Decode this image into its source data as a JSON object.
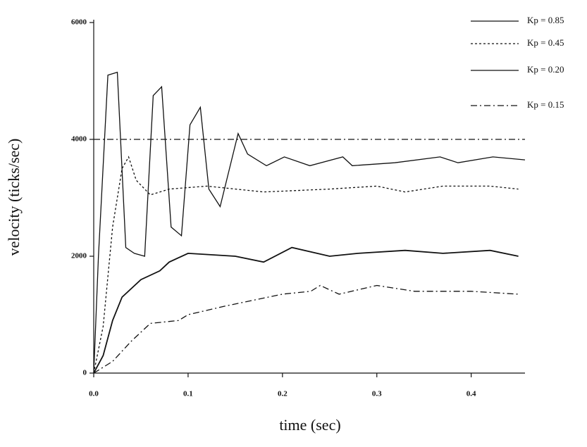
{
  "chart_data": {
    "type": "line",
    "x_label": "time (sec)",
    "y_label": "velocity (ticks/sec)",
    "xlim": [
      0,
      0.457
    ],
    "ylim": [
      0,
      6000
    ],
    "xticks": [
      {
        "value": 0,
        "label": "0.0"
      },
      0.1,
      0.2,
      0.3,
      0.4
    ],
    "yticks": [
      0,
      2000,
      4000,
      6000
    ],
    "reference_value": 4000,
    "reference_linestyle": "dashdot",
    "legend": "upper right",
    "series": [
      {
        "name": "Kp = 0.85",
        "color": "#111111",
        "linestyle": "solid",
        "x": [
          0,
          0.005,
          0.015,
          0.025,
          0.034,
          0.043,
          0.054,
          0.063,
          0.072,
          0.082,
          0.093,
          0.102,
          0.113,
          0.122,
          0.134,
          0.153,
          0.163,
          0.183,
          0.202,
          0.229,
          0.264,
          0.274,
          0.319,
          0.367,
          0.386,
          0.423,
          0.457
        ],
        "values": [
          0,
          2000,
          5100,
          5150,
          2150,
          2050,
          2000,
          4750,
          4900,
          2500,
          2350,
          4250,
          4550,
          3150,
          2850,
          4100,
          3750,
          3550,
          3700,
          3550,
          3700,
          3550,
          3600,
          3700,
          3600,
          3700,
          3650
        ]
      },
      {
        "name": "Kp = 0.45",
        "color": "#111111",
        "linestyle": "dotted",
        "x": [
          0,
          0.01,
          0.02,
          0.03,
          0.037,
          0.045,
          0.06,
          0.08,
          0.12,
          0.18,
          0.25,
          0.3,
          0.33,
          0.37,
          0.42,
          0.45
        ],
        "values": [
          0,
          800,
          2500,
          3500,
          3700,
          3300,
          3050,
          3150,
          3200,
          3100,
          3150,
          3200,
          3100,
          3200,
          3200,
          3150
        ]
      },
      {
        "name": "Kp = 0.20",
        "color": "#111111",
        "linestyle": "solid",
        "x": [
          0,
          0.01,
          0.02,
          0.03,
          0.05,
          0.07,
          0.08,
          0.1,
          0.15,
          0.18,
          0.21,
          0.25,
          0.28,
          0.33,
          0.37,
          0.42,
          0.45
        ],
        "values": [
          0,
          300,
          900,
          1300,
          1600,
          1750,
          1900,
          2050,
          2000,
          1900,
          2150,
          2000,
          2050,
          2100,
          2050,
          2100,
          2000
        ]
      },
      {
        "name": "Kp = 0.15",
        "color": "#111111",
        "linestyle": "dashdot",
        "x": [
          0,
          0.02,
          0.04,
          0.06,
          0.09,
          0.1,
          0.14,
          0.2,
          0.23,
          0.24,
          0.26,
          0.3,
          0.34,
          0.4,
          0.45
        ],
        "values": [
          0,
          200,
          550,
          850,
          900,
          1000,
          1150,
          1350,
          1400,
          1500,
          1350,
          1500,
          1400,
          1400,
          1350
        ]
      }
    ]
  }
}
